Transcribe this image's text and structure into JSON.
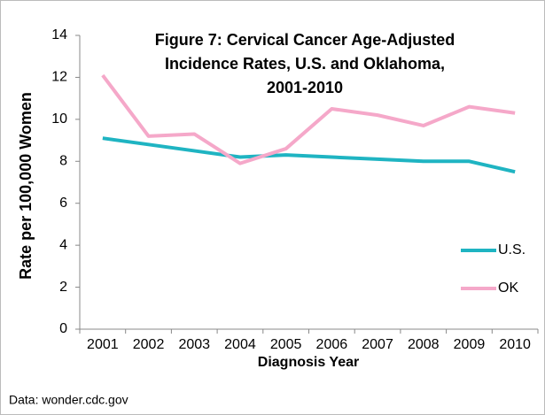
{
  "chart_data": {
    "type": "line",
    "title": [
      "Figure 7: Cervical Cancer Age-Adjusted",
      "Incidence Rates, U.S. and Oklahoma,",
      "2001-2010"
    ],
    "x_label": "Diagnosis Year",
    "y_label": "Rate per 100,000 Women",
    "note": "Data: wonder.cdc.gov",
    "categories": [
      "2001",
      "2002",
      "2003",
      "2004",
      "2005",
      "2006",
      "2007",
      "2008",
      "2009",
      "2010"
    ],
    "series": [
      {
        "name": "U.S.",
        "color": "#1fb4c2",
        "values": [
          9.1,
          8.8,
          8.5,
          8.2,
          8.3,
          8.2,
          8.1,
          8.0,
          8.0,
          7.5
        ]
      },
      {
        "name": "OK",
        "color": "#f5a8c9",
        "values": [
          12.1,
          9.2,
          9.3,
          7.9,
          8.6,
          10.5,
          10.2,
          9.7,
          10.6,
          10.3
        ]
      }
    ],
    "ylim": [
      0,
      14
    ],
    "yticks": [
      0,
      2,
      4,
      6,
      8,
      10,
      12,
      14
    ],
    "legend": "right"
  }
}
